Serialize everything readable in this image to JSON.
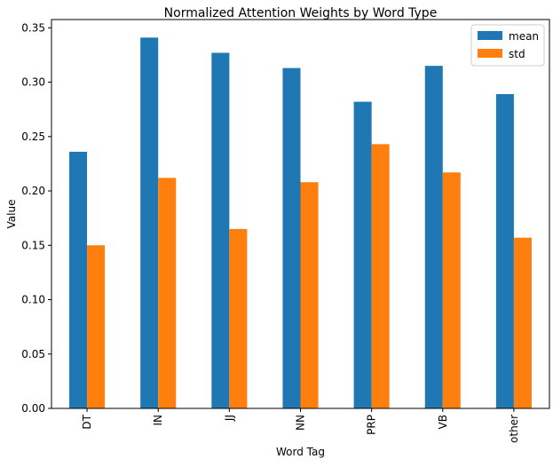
{
  "chart_data": {
    "type": "bar",
    "title": "Normalized Attention Weights by Word Type",
    "xlabel": "Word Tag",
    "ylabel": "Value",
    "categories": [
      "DT",
      "IN",
      "JJ",
      "NN",
      "PRP",
      "VB",
      "other"
    ],
    "series": [
      {
        "name": "mean",
        "color": "#1f77b4",
        "values": [
          0.236,
          0.341,
          0.327,
          0.313,
          0.282,
          0.315,
          0.289
        ]
      },
      {
        "name": "std",
        "color": "#ff7f0e",
        "values": [
          0.15,
          0.212,
          0.165,
          0.208,
          0.243,
          0.217,
          0.157
        ]
      }
    ],
    "ylim": [
      0,
      0.3576
    ],
    "yticks": [
      "0.00",
      "0.05",
      "0.10",
      "0.15",
      "0.20",
      "0.25",
      "0.30",
      "0.35"
    ],
    "ytick_values": [
      0,
      0.05,
      0.1,
      0.15,
      0.2,
      0.25,
      0.3,
      0.35
    ],
    "grid": false,
    "legend_position": "top-right"
  }
}
